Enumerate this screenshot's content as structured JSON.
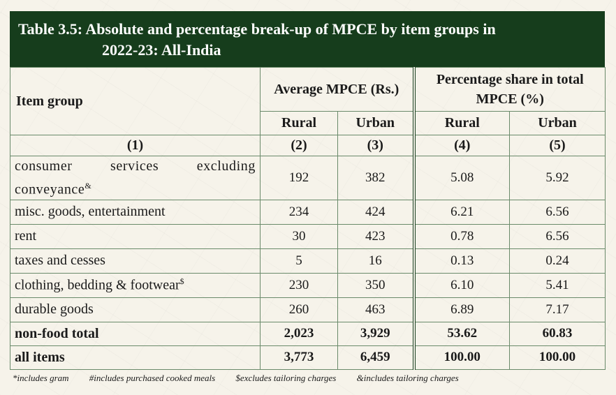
{
  "title": {
    "line1": "Table 3.5: Absolute and percentage break-up of MPCE by item groups in",
    "line2": "2022-23: All-India"
  },
  "header": {
    "item_group": "Item group",
    "avg_mpce": "Average MPCE (Rs.)",
    "pct_share": "Percentage share in total MPCE (%)",
    "rural": "Rural",
    "urban": "Urban",
    "col_nums": [
      "(1)",
      "(2)",
      "(3)",
      "(4)",
      "(5)"
    ]
  },
  "rows": [
    {
      "label": "consumer services excluding conveyance",
      "sup": "&",
      "rural_avg": "192",
      "urban_avg": "382",
      "rural_pct": "5.08",
      "urban_pct": "5.92"
    },
    {
      "label": "misc. goods, entertainment",
      "sup": "",
      "rural_avg": "234",
      "urban_avg": "424",
      "rural_pct": "6.21",
      "urban_pct": "6.56"
    },
    {
      "label": "rent",
      "sup": "",
      "rural_avg": "30",
      "urban_avg": "423",
      "rural_pct": "0.78",
      "urban_pct": "6.56"
    },
    {
      "label": "taxes and cesses",
      "sup": "",
      "rural_avg": "5",
      "urban_avg": "16",
      "rural_pct": "0.13",
      "urban_pct": "0.24"
    },
    {
      "label": "clothing, bedding & footwear",
      "sup": "$",
      "rural_avg": "230",
      "urban_avg": "350",
      "rural_pct": "6.10",
      "urban_pct": "5.41"
    },
    {
      "label": "durable goods",
      "sup": "",
      "rural_avg": "260",
      "urban_avg": "463",
      "rural_pct": "6.89",
      "urban_pct": "7.17"
    },
    {
      "label": "non-food total",
      "sup": "",
      "rural_avg": "2,023",
      "urban_avg": "3,929",
      "rural_pct": "53.62",
      "urban_pct": "60.83"
    },
    {
      "label": "all items",
      "sup": "",
      "rural_avg": "3,773",
      "urban_avg": "6,459",
      "rural_pct": "100.00",
      "urban_pct": "100.00"
    }
  ],
  "footnotes": [
    "*includes gram",
    "#includes purchased cooked meals",
    "$excludes tailoring charges",
    "&includes tailoring charges"
  ],
  "colors": {
    "title_bg": "#163d1c",
    "title_text": "#ffffff",
    "border": "#6a8a6a",
    "page_bg": "#f4f1e8"
  }
}
